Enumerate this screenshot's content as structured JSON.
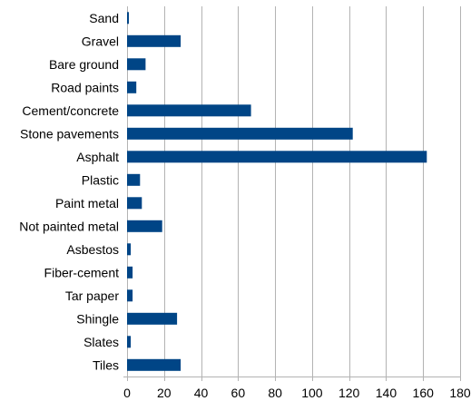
{
  "chart_data": {
    "type": "bar",
    "orientation": "horizontal",
    "categories": [
      "Sand",
      "Gravel",
      "Bare ground",
      "Road paints",
      "Cement/concrete",
      "Stone pavements",
      "Asphalt",
      "Plastic",
      "Paint metal",
      "Not painted metal",
      "Asbestos",
      "Fiber-cement",
      "Tar paper",
      "Shingle",
      "Slates",
      "Tiles"
    ],
    "values": [
      1,
      29,
      10,
      5,
      67,
      122,
      162,
      7,
      8,
      19,
      2,
      3,
      3,
      27,
      2,
      29
    ],
    "xlim": [
      0,
      180
    ],
    "xticks": [
      0,
      20,
      40,
      60,
      80,
      100,
      120,
      140,
      160,
      180
    ],
    "grid": "vertical",
    "legend": "none",
    "colors": {
      "bar": "#004586",
      "grid": "#b3b3b3"
    }
  }
}
